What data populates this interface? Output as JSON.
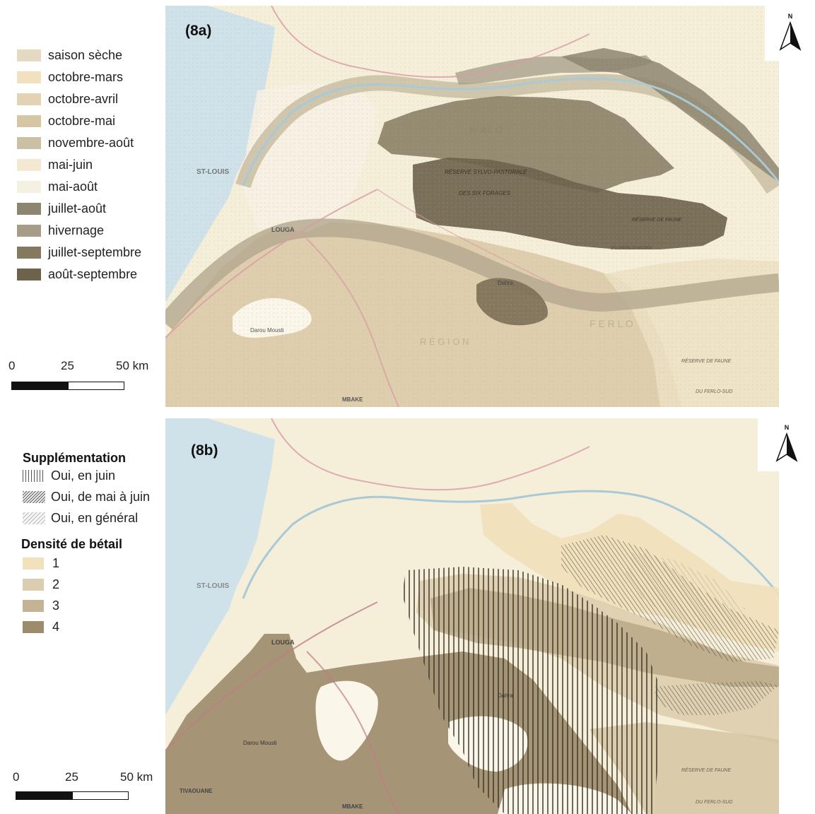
{
  "panel_a": {
    "label": "(8a)",
    "legend_items": [
      {
        "label": "saison sèche",
        "color": "#e6d9c1"
      },
      {
        "label": "octobre-mars",
        "color": "#f1e1bf"
      },
      {
        "label": "octobre-avril",
        "color": "#e2d3b5"
      },
      {
        "label": "octobre-mai",
        "color": "#d5c6a4"
      },
      {
        "label": "novembre-août",
        "color": "#cbbfa4"
      },
      {
        "label": "mai-juin",
        "color": "#f4e8d2"
      },
      {
        "label": "mai-août",
        "color": "#f4f0e2"
      },
      {
        "label": "juillet-août",
        "color": "#8e8570"
      },
      {
        "label": "hivernage",
        "color": "#a69c87"
      },
      {
        "label": "juillet-septembre",
        "color": "#84785e"
      },
      {
        "label": "août-septembre",
        "color": "#6d624b"
      }
    ],
    "scale": {
      "labels": [
        "0",
        "25",
        "50 km"
      ]
    },
    "north_label": "N",
    "map_labels": {
      "st_louis": "ST-LOUIS",
      "louga": "LOUGA",
      "dahra": "Dahra",
      "reserve_sylvo": "RÉSERVE SYLVO-PASTORALE",
      "six_forages": "DES SIX FORAGES",
      "reserve_faune": "RÉSERVE DE FAUNE",
      "ferlo_nord": "DU FERLO-NORD",
      "ferlo_sud": "DU FERLO-SUD",
      "reserve_faune2": "RÉSERVE DE FAUNE",
      "darou_mousti": "Darou Mousti",
      "mbake": "MBAKE",
      "ferlo": "F E R L O",
      "walo": "W A L O",
      "region": "R É G I O N"
    }
  },
  "panel_b": {
    "label": "(8b)",
    "supplementation_title": "Supplémentation",
    "supplementation_items": [
      {
        "label": "Oui, en juin",
        "pattern": "vertical-lines"
      },
      {
        "label": "Oui, de mai à juin",
        "pattern": "dense-hatch"
      },
      {
        "label": "Oui, en général",
        "pattern": "light-hatch"
      }
    ],
    "density_title": "Densité de bétail",
    "density_items": [
      {
        "label": "1",
        "color": "#f3e1be"
      },
      {
        "label": "2",
        "color": "#ddcdb0"
      },
      {
        "label": "3",
        "color": "#c4b394"
      },
      {
        "label": "4",
        "color": "#9c8b6c"
      }
    ],
    "scale": {
      "labels": [
        "0",
        "25",
        "50 km"
      ]
    },
    "north_label": "N",
    "map_labels": {
      "st_louis": "ST-LOUIS",
      "louga": "LOUGA",
      "dahra": "Dahra",
      "reserve_faune": "RÉSERVE DE FAUNE",
      "ferlo_sud": "DU FERLO-SUD",
      "mbake": "MBAKE",
      "darou_mousti": "Darou Mousti",
      "tivaouane": "TIVAOUANE"
    }
  },
  "colors": {
    "sea": "#cfe2ea",
    "base_land": "#f5efd9",
    "road": "#d99aa6",
    "river": "#a9c9d6"
  }
}
